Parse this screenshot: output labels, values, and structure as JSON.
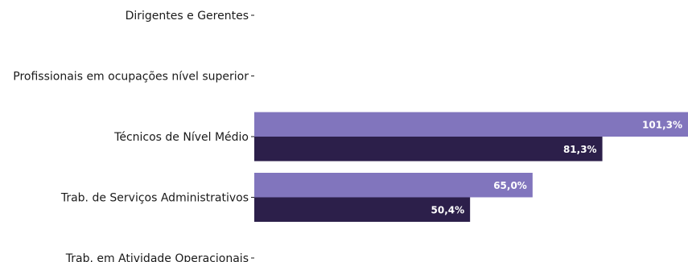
{
  "chart_data": {
    "type": "bar",
    "orientation": "horizontal",
    "categories": [
      "Dirigentes e Gerentes",
      "Profissionais em ocupações nível superior",
      "Técnicos de Nível Médio",
      "Trab. de Serviços Administrativos",
      "Trab. em Atividade Operacionais"
    ],
    "series": [
      {
        "color": "#8175bd",
        "values": [
          null,
          null,
          101.3,
          65.0,
          null
        ],
        "labels": [
          "",
          "",
          "101,3%",
          "65,0%",
          ""
        ]
      },
      {
        "color": "#2c1f4a",
        "values": [
          null,
          null,
          81.3,
          50.4,
          null
        ],
        "labels": [
          "",
          "",
          "81,3%",
          "50,4%",
          ""
        ]
      }
    ],
    "xlim": [
      0,
      101.3
    ],
    "grid": false,
    "title": "",
    "xlabel": "",
    "ylabel": ""
  }
}
